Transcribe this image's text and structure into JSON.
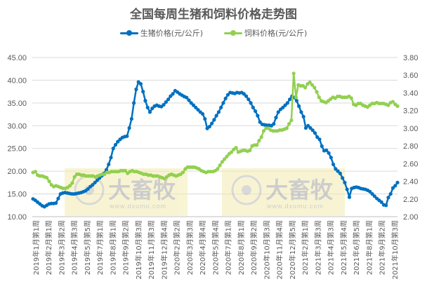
{
  "chart_data": {
    "type": "line",
    "title": "全国每周生猪和饲料价格走势图",
    "legend_position": "top",
    "grid": true,
    "x_tick_labels": [
      "2019年1月第1周",
      "2019年2月第1周",
      "2019年3月第2周",
      "2019年4月第3周",
      "2019年5月第5周",
      "2019年7月第1周",
      "2019年8月第1周",
      "2019年9月第2周",
      "2019年10月第3周",
      "2019年11月第3周",
      "2019年12月第4周",
      "2020年2月第2周",
      "2020年3月第3周",
      "2020年4月第4周",
      "2020年5月第4周",
      "2020年7月第1周",
      "2020年8月第1周",
      "2020年9月第2周",
      "2020年10月第3周",
      "2020年11月第4周",
      "2020年12月第5周",
      "2021年2月第1周",
      "2021年3月第3周",
      "2021年4月第3周",
      "2021年5月第4周",
      "2021年6月第5周",
      "2021年8月第1周",
      "2021年9月第2周",
      "2021年10月第3周"
    ],
    "left_axis": {
      "label": "生猪价格(元/公斤)",
      "ylim": [
        10,
        45
      ],
      "ticks": [
        "10.00",
        "15.00",
        "20.00",
        "25.00",
        "30.00",
        "35.00",
        "40.00",
        "45.00"
      ]
    },
    "right_axis": {
      "label": "饲料价格(元/公斤)",
      "ylim": [
        2.0,
        3.8
      ],
      "ticks": [
        "2.00",
        "2.20",
        "2.40",
        "2.60",
        "2.80",
        "3.00",
        "3.20",
        "3.40",
        "3.60",
        "3.80"
      ]
    },
    "series": [
      {
        "name": "生猪价格(元/公斤)",
        "axis": "left",
        "color": "#0070C0",
        "values": [
          13.9,
          13.6,
          13.2,
          12.8,
          12.4,
          12.2,
          12.5,
          12.8,
          12.9,
          12.9,
          13.0,
          14.0,
          15.0,
          15.2,
          15.3,
          15.2,
          15.1,
          15.0,
          15.0,
          15.1,
          15.2,
          15.3,
          15.5,
          15.7,
          16.1,
          16.6,
          17.0,
          17.5,
          18.0,
          18.5,
          19.0,
          19.5,
          20.3,
          21.5,
          23.0,
          25.0,
          25.8,
          26.5,
          27.0,
          27.4,
          27.6,
          27.7,
          29.5,
          31.5,
          35.0,
          38.0,
          39.6,
          39.2,
          37.5,
          35.5,
          34.0,
          33.0,
          33.8,
          34.3,
          34.5,
          34.3,
          34.2,
          34.6,
          35.2,
          35.8,
          36.5,
          37.0,
          37.7,
          37.4,
          37.0,
          36.7,
          36.4,
          36.2,
          35.6,
          35.0,
          34.5,
          34.0,
          33.5,
          33.0,
          32.6,
          31.5,
          29.4,
          29.8,
          30.5,
          31.3,
          32.2,
          33.0,
          34.0,
          35.0,
          36.0,
          36.8,
          37.3,
          37.2,
          37.1,
          37.3,
          37.2,
          37.3,
          37.0,
          36.5,
          35.8,
          35.0,
          34.0,
          33.2,
          32.2,
          30.8,
          30.3,
          30.2,
          30.1,
          30.1,
          30.0,
          30.4,
          31.8,
          33.0,
          33.6,
          34.0,
          34.5,
          35.0,
          35.8,
          36.5,
          36.2,
          35.5,
          34.3,
          33.0,
          32.0,
          29.5,
          30.0,
          29.5,
          29.0,
          28.4,
          27.5,
          27.0,
          25.5,
          24.5,
          24.6,
          24.0,
          23.0,
          21.5,
          20.5,
          20.0,
          19.5,
          18.5,
          17.5,
          16.0,
          14.3,
          16.2,
          16.4,
          16.5,
          16.4,
          16.2,
          16.1,
          16.0,
          15.8,
          15.5,
          15.0,
          14.5,
          14.0,
          13.6,
          13.2,
          12.6,
          12.5,
          14.2,
          15.0,
          16.3,
          16.8,
          17.5
        ]
      },
      {
        "name": "饲料价格(元/公斤)",
        "axis": "right",
        "color": "#92D050",
        "values": [
          2.5,
          2.51,
          2.47,
          2.46,
          2.46,
          2.45,
          2.44,
          2.4,
          2.36,
          2.34,
          2.35,
          2.34,
          2.33,
          2.32,
          2.32,
          2.33,
          2.35,
          2.38,
          2.45,
          2.48,
          2.48,
          2.47,
          2.47,
          2.46,
          2.46,
          2.46,
          2.46,
          2.45,
          2.46,
          2.47,
          2.48,
          2.48,
          2.5,
          2.5,
          2.51,
          2.51,
          2.51,
          2.51,
          2.52,
          2.52,
          2.52,
          2.49,
          2.51,
          2.52,
          2.51,
          2.51,
          2.5,
          2.49,
          2.48,
          2.48,
          2.47,
          2.47,
          2.46,
          2.46,
          2.46,
          2.45,
          2.44,
          2.43,
          2.45,
          2.47,
          2.48,
          2.47,
          2.46,
          2.47,
          2.48,
          2.5,
          2.54,
          2.56,
          2.56,
          2.56,
          2.56,
          2.55,
          2.54,
          2.52,
          2.51,
          2.5,
          2.51,
          2.51,
          2.51,
          2.52,
          2.54,
          2.58,
          2.62,
          2.65,
          2.68,
          2.71,
          2.73,
          2.76,
          2.78,
          2.73,
          2.74,
          2.75,
          2.75,
          2.74,
          2.75,
          2.8,
          2.81,
          2.81,
          2.86,
          2.9,
          2.97,
          3.0,
          3.0,
          2.98,
          2.97,
          2.97,
          2.97,
          2.98,
          2.98,
          2.99,
          3.0,
          3.05,
          3.09,
          3.62,
          3.35,
          3.49,
          3.48,
          3.48,
          3.46,
          3.5,
          3.52,
          3.49,
          3.46,
          3.41,
          3.35,
          3.31,
          3.3,
          3.29,
          3.31,
          3.33,
          3.35,
          3.34,
          3.36,
          3.36,
          3.35,
          3.35,
          3.35,
          3.36,
          3.34,
          3.27,
          3.26,
          3.28,
          3.28,
          3.26,
          3.25,
          3.24,
          3.26,
          3.28,
          3.28,
          3.29,
          3.28,
          3.28,
          3.28,
          3.27,
          3.26,
          3.29,
          3.3,
          3.27,
          3.25
        ]
      }
    ]
  },
  "watermarks": [
    {
      "brand": "大畜牧",
      "url": "www.dxumu.com"
    },
    {
      "brand": "大畜牧",
      "url": "www.dxumu.com"
    }
  ]
}
